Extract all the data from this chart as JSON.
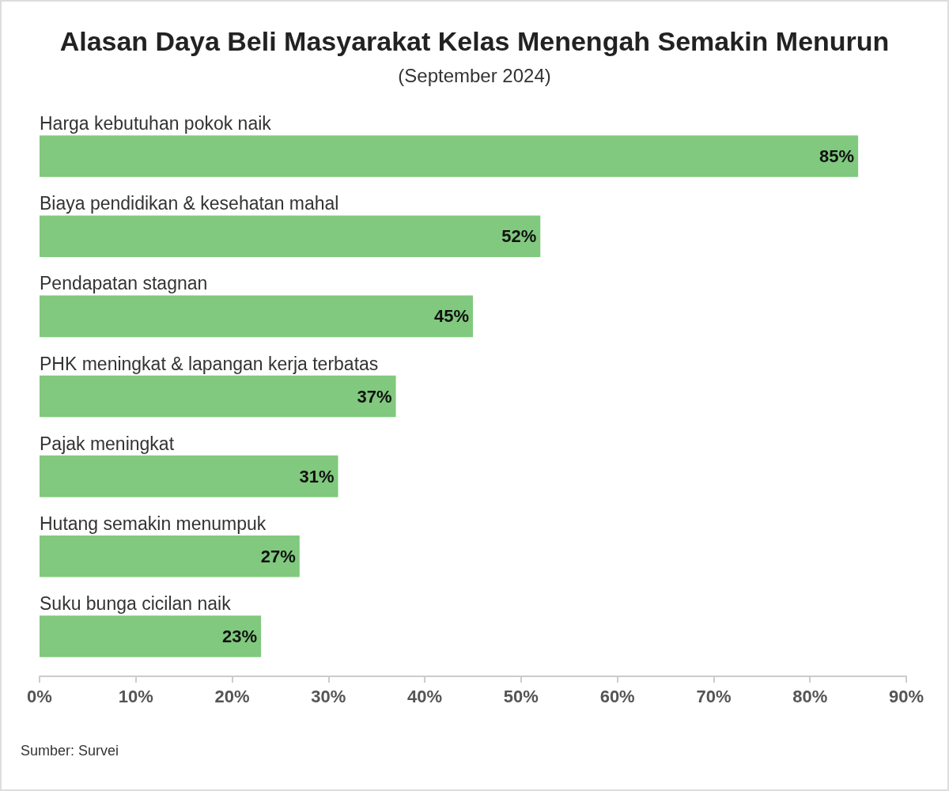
{
  "chart_data": {
    "type": "bar",
    "orientation": "horizontal",
    "title": "Alasan Daya Beli Masyarakat Kelas Menengah Semakin Menurun",
    "subtitle": "(September 2024)",
    "categories": [
      "Harga kebutuhan pokok naik",
      "Biaya pendidikan & kesehatan mahal",
      "Pendapatan stagnan",
      "PHK meningkat & lapangan kerja terbatas",
      "Pajak meningkat",
      "Hutang semakin menumpuk",
      "Suku bunga cicilan naik"
    ],
    "values": [
      85,
      52,
      45,
      37,
      31,
      27,
      23
    ],
    "value_labels": [
      "85%",
      "52%",
      "45%",
      "37%",
      "31%",
      "27%",
      "23%"
    ],
    "color": "#80c97e",
    "xlim": [
      0,
      90
    ],
    "xticks": [
      {
        "value": 0,
        "label": "0%"
      },
      {
        "value": 10,
        "label": "10%"
      },
      {
        "value": 20,
        "label": "20%"
      },
      {
        "value": 30,
        "label": "30%"
      },
      {
        "value": 40,
        "label": "40%"
      },
      {
        "value": 50,
        "label": "50%"
      },
      {
        "value": 60,
        "label": "60%"
      },
      {
        "value": 70,
        "label": "70%"
      },
      {
        "value": 80,
        "label": "80%"
      },
      {
        "value": 90,
        "label": "90%"
      }
    ],
    "grid": false,
    "annotations": [
      "Sumber: Survei"
    ]
  }
}
